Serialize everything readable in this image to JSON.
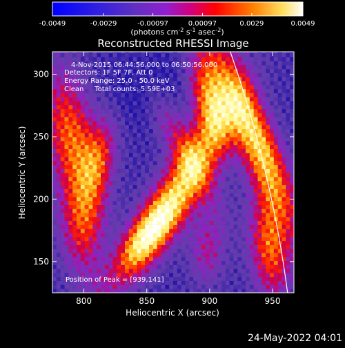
{
  "chart_data": {
    "type": "heatmap",
    "title": "Reconstructed RHESSI Image",
    "xlabel": "Heliocentric X (arcsec)",
    "ylabel": "Heliocentric Y (arcsec)",
    "xlim": [
      775,
      967
    ],
    "ylim": [
      125,
      318
    ],
    "x_ticks": [
      800,
      850,
      900,
      950
    ],
    "y_ticks": [
      150,
      200,
      250,
      300
    ],
    "colorbar": {
      "ticks": [
        "-0.0049",
        "-0.0029",
        "-0.00097",
        "0.00097",
        "0.0029",
        "0.0049"
      ],
      "vmin": -0.0049,
      "vmax": 0.0049,
      "unit_label_pre": "(photons cm",
      "unit_exp1": "-2",
      "unit_mid": " s",
      "unit_exp2": "-1",
      "unit_mid2": " asec",
      "unit_exp3": "-2",
      "unit_post": ")"
    },
    "annotations": [
      "4-Nov-2015 06:44:56.000 to 06:50:56.000",
      "Detectors: 1F 5F 7F, Att 0",
      "Energy Range: 25.0 - 50.0 keV",
      "Clean     Total counts: 5.59E+03"
    ],
    "peak_label": "Position of Peak = [939,141]",
    "peak": [
      939,
      141
    ],
    "grid": false,
    "limb_color": "#ffffff",
    "colors": {
      "background": "#000000",
      "colormap": [
        "#0000ff",
        "#6040c0",
        "#8000ff",
        "#ff0000",
        "#ff8000",
        "#ffff80",
        "#ffffff"
      ]
    }
  },
  "footer": {
    "date": "24-May-2022 04:01"
  }
}
